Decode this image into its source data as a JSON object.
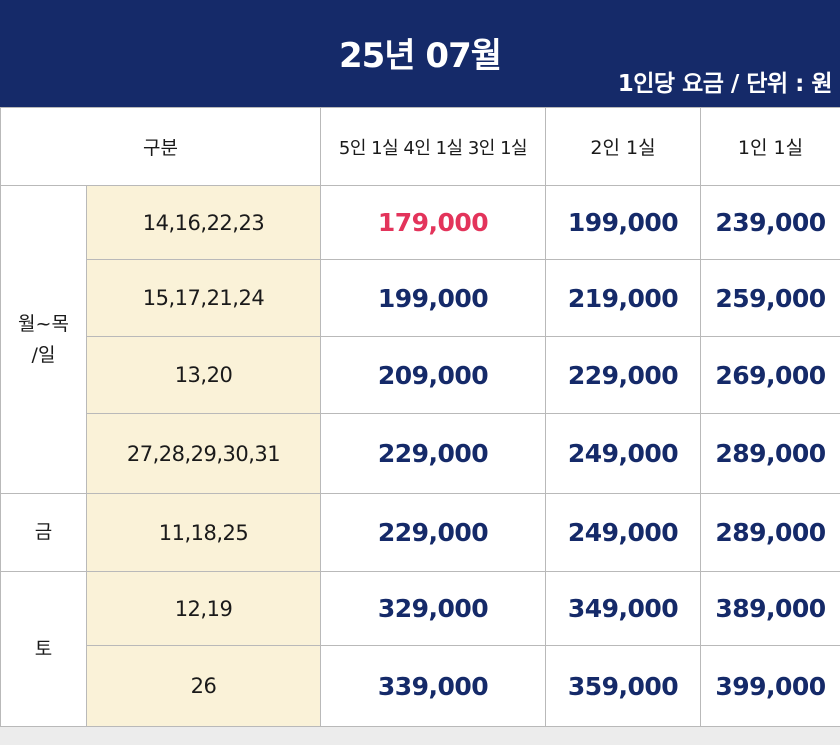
{
  "header": {
    "title": "25년 07월",
    "unit_note": "1인당 요금 / 단위 : 원"
  },
  "columns": {
    "category": "구분",
    "multi": "5인 1실  4인 1실  3인 1실",
    "double": "2인 1실",
    "single": "1인 1실"
  },
  "groups": {
    "weekday": {
      "label_line1": "월~목",
      "label_line2": "/일"
    },
    "friday": {
      "label": "금"
    },
    "saturday": {
      "label": "토"
    }
  },
  "rows": [
    {
      "dates": "14,16,22,23",
      "multi": "179,000",
      "double": "199,000",
      "single": "239,000"
    },
    {
      "dates": "15,17,21,24",
      "multi": "199,000",
      "double": "219,000",
      "single": "259,000"
    },
    {
      "dates": "13,20",
      "multi": "209,000",
      "double": "229,000",
      "single": "269,000"
    },
    {
      "dates": "27,28,29,30,31",
      "multi": "229,000",
      "double": "249,000",
      "single": "289,000"
    },
    {
      "dates": "11,18,25",
      "multi": "229,000",
      "double": "249,000",
      "single": "289,000"
    },
    {
      "dates": "12,19",
      "multi": "329,000",
      "double": "349,000",
      "single": "389,000"
    },
    {
      "dates": "26",
      "multi": "339,000",
      "double": "359,000",
      "single": "399,000"
    }
  ],
  "colors": {
    "header_bg": "#152a69",
    "price_text": "#152a69",
    "highlight_price": "#e3345b",
    "dates_bg": "#faf2d8"
  }
}
